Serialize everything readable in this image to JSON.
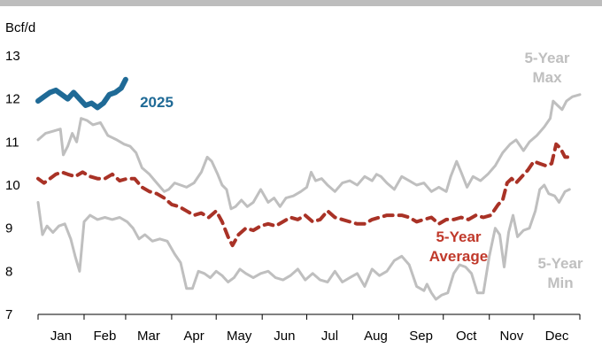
{
  "chart_data": {
    "type": "line",
    "ylabel": "Bcf/d",
    "ylim": [
      7,
      13
    ],
    "yticks": [
      7,
      8,
      9,
      10,
      11,
      12,
      13
    ],
    "xlim": [
      0,
      365
    ],
    "months": [
      {
        "label": "Jan",
        "day": 0
      },
      {
        "label": "Feb",
        "day": 31
      },
      {
        "label": "Mar",
        "day": 59
      },
      {
        "label": "Apr",
        "day": 90
      },
      {
        "label": "May",
        "day": 120
      },
      {
        "label": "Jun",
        "day": 151
      },
      {
        "label": "Jul",
        "day": 181
      },
      {
        "label": "Aug",
        "day": 212
      },
      {
        "label": "Sep",
        "day": 243
      },
      {
        "label": "Oct",
        "day": 273
      },
      {
        "label": "Nov",
        "day": 304
      },
      {
        "label": "Dec",
        "day": 334
      }
    ],
    "grid": false,
    "legend": "none",
    "series": [
      {
        "name": "5-Year Max",
        "color": "#bfbfbf",
        "style": "solid",
        "points": [
          [
            0,
            11.05
          ],
          [
            5,
            11.2
          ],
          [
            10,
            11.25
          ],
          [
            15,
            11.3
          ],
          [
            17,
            10.7
          ],
          [
            20,
            10.9
          ],
          [
            23,
            11.2
          ],
          [
            26,
            11.0
          ],
          [
            29,
            11.55
          ],
          [
            33,
            11.5
          ],
          [
            37,
            11.4
          ],
          [
            42,
            11.45
          ],
          [
            47,
            11.15
          ],
          [
            53,
            11.05
          ],
          [
            58,
            10.95
          ],
          [
            62,
            10.9
          ],
          [
            66,
            10.75
          ],
          [
            70,
            10.4
          ],
          [
            75,
            10.25
          ],
          [
            80,
            10.05
          ],
          [
            85,
            9.85
          ],
          [
            88,
            9.9
          ],
          [
            92,
            10.05
          ],
          [
            96,
            10.0
          ],
          [
            100,
            9.95
          ],
          [
            105,
            10.05
          ],
          [
            110,
            10.3
          ],
          [
            114,
            10.65
          ],
          [
            117,
            10.55
          ],
          [
            121,
            10.25
          ],
          [
            124,
            10.0
          ],
          [
            127,
            9.9
          ],
          [
            130,
            9.45
          ],
          [
            133,
            9.5
          ],
          [
            137,
            9.65
          ],
          [
            141,
            9.5
          ],
          [
            145,
            9.6
          ],
          [
            150,
            9.9
          ],
          [
            155,
            9.6
          ],
          [
            159,
            9.7
          ],
          [
            163,
            9.5
          ],
          [
            167,
            9.7
          ],
          [
            172,
            9.75
          ],
          [
            177,
            9.85
          ],
          [
            181,
            9.95
          ],
          [
            184,
            10.3
          ],
          [
            187,
            10.1
          ],
          [
            191,
            10.15
          ],
          [
            195,
            10.0
          ],
          [
            200,
            9.85
          ],
          [
            205,
            10.05
          ],
          [
            210,
            10.1
          ],
          [
            215,
            10.0
          ],
          [
            220,
            10.2
          ],
          [
            225,
            10.1
          ],
          [
            228,
            10.25
          ],
          [
            231,
            10.2
          ],
          [
            235,
            10.05
          ],
          [
            240,
            9.9
          ],
          [
            245,
            10.2
          ],
          [
            250,
            10.1
          ],
          [
            255,
            10.0
          ],
          [
            260,
            10.05
          ],
          [
            265,
            9.85
          ],
          [
            270,
            9.95
          ],
          [
            275,
            9.85
          ],
          [
            278,
            10.2
          ],
          [
            282,
            10.55
          ],
          [
            285,
            10.3
          ],
          [
            289,
            9.95
          ],
          [
            293,
            10.2
          ],
          [
            298,
            10.1
          ],
          [
            303,
            10.25
          ],
          [
            308,
            10.45
          ],
          [
            313,
            10.75
          ],
          [
            318,
            10.95
          ],
          [
            322,
            11.05
          ],
          [
            327,
            10.8
          ],
          [
            331,
            11.0
          ],
          [
            336,
            11.15
          ],
          [
            341,
            11.35
          ],
          [
            345,
            11.55
          ],
          [
            347,
            11.95
          ],
          [
            350,
            11.85
          ],
          [
            353,
            11.75
          ],
          [
            356,
            11.95
          ],
          [
            360,
            12.05
          ],
          [
            365,
            12.1
          ]
        ]
      },
      {
        "name": "5-Year Min",
        "color": "#bfbfbf",
        "style": "solid",
        "points": [
          [
            0,
            9.6
          ],
          [
            3,
            8.85
          ],
          [
            6,
            9.05
          ],
          [
            10,
            8.9
          ],
          [
            14,
            9.05
          ],
          [
            18,
            9.1
          ],
          [
            22,
            8.75
          ],
          [
            25,
            8.35
          ],
          [
            28,
            8.0
          ],
          [
            31,
            9.15
          ],
          [
            35,
            9.3
          ],
          [
            40,
            9.2
          ],
          [
            45,
            9.25
          ],
          [
            50,
            9.2
          ],
          [
            55,
            9.25
          ],
          [
            60,
            9.15
          ],
          [
            64,
            9.0
          ],
          [
            68,
            8.75
          ],
          [
            72,
            8.85
          ],
          [
            77,
            8.7
          ],
          [
            82,
            8.75
          ],
          [
            87,
            8.7
          ],
          [
            92,
            8.4
          ],
          [
            96,
            8.2
          ],
          [
            100,
            7.6
          ],
          [
            104,
            7.6
          ],
          [
            108,
            8.0
          ],
          [
            112,
            7.95
          ],
          [
            116,
            7.85
          ],
          [
            120,
            8.0
          ],
          [
            124,
            7.9
          ],
          [
            128,
            7.75
          ],
          [
            132,
            7.85
          ],
          [
            136,
            8.05
          ],
          [
            140,
            7.95
          ],
          [
            145,
            7.85
          ],
          [
            150,
            7.95
          ],
          [
            155,
            8.0
          ],
          [
            160,
            7.85
          ],
          [
            165,
            7.8
          ],
          [
            170,
            7.9
          ],
          [
            175,
            8.05
          ],
          [
            180,
            7.8
          ],
          [
            185,
            7.95
          ],
          [
            190,
            7.8
          ],
          [
            195,
            7.75
          ],
          [
            200,
            8.0
          ],
          [
            205,
            7.75
          ],
          [
            210,
            7.85
          ],
          [
            215,
            7.95
          ],
          [
            220,
            7.65
          ],
          [
            225,
            8.05
          ],
          [
            230,
            7.9
          ],
          [
            235,
            8.0
          ],
          [
            240,
            8.25
          ],
          [
            245,
            8.35
          ],
          [
            250,
            8.15
          ],
          [
            255,
            7.65
          ],
          [
            260,
            7.55
          ],
          [
            262,
            7.7
          ],
          [
            265,
            7.5
          ],
          [
            268,
            7.35
          ],
          [
            272,
            7.45
          ],
          [
            276,
            7.5
          ],
          [
            280,
            7.95
          ],
          [
            284,
            8.15
          ],
          [
            288,
            8.1
          ],
          [
            292,
            7.95
          ],
          [
            296,
            7.5
          ],
          [
            300,
            7.5
          ],
          [
            304,
            8.35
          ],
          [
            308,
            9.0
          ],
          [
            311,
            8.85
          ],
          [
            314,
            8.1
          ],
          [
            317,
            8.9
          ],
          [
            320,
            9.3
          ],
          [
            323,
            8.8
          ],
          [
            327,
            8.95
          ],
          [
            331,
            9.0
          ],
          [
            335,
            9.4
          ],
          [
            338,
            9.9
          ],
          [
            341,
            10.0
          ],
          [
            344,
            9.8
          ],
          [
            348,
            9.75
          ],
          [
            351,
            9.6
          ],
          [
            355,
            9.85
          ],
          [
            358,
            9.9
          ]
        ]
      },
      {
        "name": "5-Year Average",
        "color": "#a93226",
        "style": "dashed",
        "points": [
          [
            0,
            10.15
          ],
          [
            4,
            10.05
          ],
          [
            8,
            10.15
          ],
          [
            12,
            10.25
          ],
          [
            16,
            10.3
          ],
          [
            20,
            10.25
          ],
          [
            25,
            10.2
          ],
          [
            30,
            10.3
          ],
          [
            35,
            10.2
          ],
          [
            40,
            10.15
          ],
          [
            45,
            10.15
          ],
          [
            50,
            10.25
          ],
          [
            55,
            10.1
          ],
          [
            60,
            10.15
          ],
          [
            65,
            10.15
          ],
          [
            70,
            9.95
          ],
          [
            75,
            9.85
          ],
          [
            80,
            9.8
          ],
          [
            85,
            9.7
          ],
          [
            90,
            9.55
          ],
          [
            95,
            9.5
          ],
          [
            100,
            9.4
          ],
          [
            105,
            9.3
          ],
          [
            110,
            9.35
          ],
          [
            115,
            9.25
          ],
          [
            120,
            9.4
          ],
          [
            124,
            9.15
          ],
          [
            128,
            8.8
          ],
          [
            131,
            8.6
          ],
          [
            135,
            8.85
          ],
          [
            140,
            9.0
          ],
          [
            145,
            8.95
          ],
          [
            150,
            9.05
          ],
          [
            155,
            9.1
          ],
          [
            160,
            9.05
          ],
          [
            165,
            9.15
          ],
          [
            170,
            9.25
          ],
          [
            175,
            9.2
          ],
          [
            180,
            9.3
          ],
          [
            185,
            9.15
          ],
          [
            190,
            9.2
          ],
          [
            195,
            9.4
          ],
          [
            200,
            9.25
          ],
          [
            205,
            9.2
          ],
          [
            210,
            9.15
          ],
          [
            215,
            9.1
          ],
          [
            220,
            9.1
          ],
          [
            225,
            9.2
          ],
          [
            230,
            9.25
          ],
          [
            235,
            9.3
          ],
          [
            240,
            9.3
          ],
          [
            245,
            9.3
          ],
          [
            250,
            9.25
          ],
          [
            255,
            9.15
          ],
          [
            260,
            9.2
          ],
          [
            265,
            9.25
          ],
          [
            270,
            9.1
          ],
          [
            275,
            9.2
          ],
          [
            280,
            9.2
          ],
          [
            285,
            9.25
          ],
          [
            290,
            9.2
          ],
          [
            295,
            9.3
          ],
          [
            300,
            9.25
          ],
          [
            305,
            9.3
          ],
          [
            310,
            9.55
          ],
          [
            313,
            9.65
          ],
          [
            316,
            10.05
          ],
          [
            319,
            10.15
          ],
          [
            322,
            10.05
          ],
          [
            326,
            10.2
          ],
          [
            330,
            10.35
          ],
          [
            334,
            10.55
          ],
          [
            338,
            10.5
          ],
          [
            342,
            10.45
          ],
          [
            346,
            10.5
          ],
          [
            349,
            10.95
          ],
          [
            352,
            10.85
          ],
          [
            355,
            10.65
          ],
          [
            360,
            10.65
          ]
        ]
      },
      {
        "name": "2025",
        "color": "#1f6a96",
        "style": "solid",
        "points": [
          [
            0,
            11.95
          ],
          [
            4,
            12.05
          ],
          [
            8,
            12.15
          ],
          [
            12,
            12.2
          ],
          [
            16,
            12.1
          ],
          [
            20,
            12.0
          ],
          [
            24,
            12.15
          ],
          [
            28,
            12.0
          ],
          [
            32,
            11.85
          ],
          [
            36,
            11.9
          ],
          [
            40,
            11.8
          ],
          [
            44,
            11.9
          ],
          [
            48,
            12.1
          ],
          [
            52,
            12.15
          ],
          [
            56,
            12.25
          ],
          [
            59,
            12.45
          ]
        ]
      }
    ],
    "annotations": [
      {
        "text": "2025",
        "color": "#1f6a96",
        "lines": [
          "2025"
        ]
      },
      {
        "text": "5-Year Max",
        "color": "#bfbfbf",
        "lines": [
          "5-Year",
          "Max"
        ]
      },
      {
        "text": "5-Year Average",
        "color": "#c0392b",
        "lines": [
          "5-Year",
          "Average"
        ]
      },
      {
        "text": "5-Year Min",
        "color": "#bfbfbf",
        "lines": [
          "5-Year",
          "Min"
        ]
      }
    ]
  }
}
